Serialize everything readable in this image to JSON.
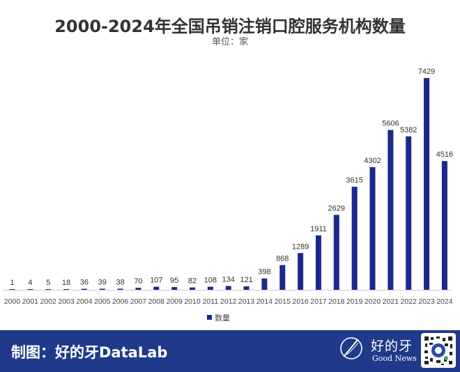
{
  "title": "2000-2024年全国吊销注销口腔服务机构数量",
  "subtitle": "单位：家",
  "footer": {
    "credit": "制图：好的牙DataLab",
    "brand_cn": "好的牙",
    "brand_en": "Good News",
    "logo_icon": "brush-circle-logo-icon",
    "qr_icon": "qr-code-icon"
  },
  "chart_data": {
    "type": "bar",
    "categories": [
      "2000",
      "2001",
      "2002",
      "2003",
      "2004",
      "2005",
      "2006",
      "2007",
      "2008",
      "2009",
      "2010",
      "2011",
      "2012",
      "2013",
      "2014",
      "2015",
      "2016",
      "2017",
      "2018",
      "2019",
      "2020",
      "2021",
      "2022",
      "2023",
      "2024"
    ],
    "series": [
      {
        "name": "数量",
        "values": [
          1,
          4,
          5,
          18,
          36,
          39,
          38,
          70,
          107,
          95,
          82,
          108,
          134,
          121,
          398,
          868,
          1289,
          1911,
          2629,
          3615,
          4302,
          5606,
          5382,
          7429,
          4516
        ]
      }
    ],
    "ylim": [
      0,
      7800
    ],
    "grid": false,
    "legend": "bottom-center",
    "data_labels": true,
    "colors": {
      "bar": "#1a2a8c",
      "footer": "#1f3a8a"
    }
  }
}
